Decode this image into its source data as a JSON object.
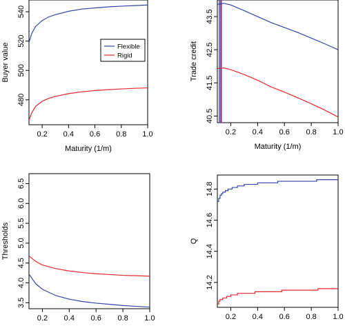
{
  "chart_data": [
    {
      "type": "line",
      "xlabel": "Maturity (1/m)",
      "ylabel": "Buyer value",
      "xlim": [
        0.1,
        1.0
      ],
      "ylim": [
        463,
        548
      ],
      "xticks": [
        0.2,
        0.4,
        0.6,
        0.8,
        1.0
      ],
      "xtick_labels": [
        "0.2",
        "0.4",
        "0.6",
        "0.8",
        "1.0"
      ],
      "yticks": [
        480,
        500,
        520,
        540
      ],
      "ytick_labels": [
        "480",
        "500",
        "520",
        "540"
      ],
      "legend": {
        "placement": "center-right",
        "entries": [
          "Flexible",
          "Rigid"
        ]
      },
      "series": [
        {
          "name": "Flexible",
          "color": "#3344aa",
          "x": [
            0.1,
            0.12,
            0.15,
            0.2,
            0.25,
            0.3,
            0.4,
            0.5,
            0.6,
            0.7,
            0.8,
            0.9,
            1.0
          ],
          "values": [
            519,
            525,
            530,
            534,
            536.5,
            538,
            540.3,
            541.8,
            542.6,
            543.3,
            543.8,
            544.2,
            544.6
          ]
        },
        {
          "name": "Rigid",
          "color": "#e8262b",
          "x": [
            0.1,
            0.12,
            0.15,
            0.2,
            0.25,
            0.3,
            0.4,
            0.5,
            0.6,
            0.7,
            0.8,
            0.9,
            1.0
          ],
          "values": [
            466,
            471,
            475.5,
            479,
            481,
            482.3,
            484.2,
            485.4,
            486.3,
            486.9,
            487.4,
            487.8,
            488.1
          ]
        }
      ]
    },
    {
      "type": "line",
      "xlabel": "Maturity (1/m)",
      "ylabel": "Trade credit",
      "xlim": [
        0.1,
        1.0
      ],
      "ylim": [
        40.3,
        44.0
      ],
      "xticks": [
        0.2,
        0.4,
        0.6,
        0.8,
        1.0
      ],
      "xtick_labels": [
        "0.2",
        "0.4",
        "0.6",
        "0.8",
        "1.0"
      ],
      "yticks": [
        40.5,
        41.5,
        42.5,
        43.5
      ],
      "ytick_labels": [
        "40.5",
        "41.5",
        "42.5",
        "43.5"
      ],
      "vlines": [
        {
          "x": 0.115,
          "color": "#3344aa"
        },
        {
          "x": 0.13,
          "color": "#3344aa"
        },
        {
          "x": 0.125,
          "color": "#e8262b"
        }
      ],
      "series": [
        {
          "name": "Flexible",
          "color": "#3344aa",
          "x": [
            0.1,
            0.15,
            0.2,
            0.3,
            0.4,
            0.5,
            0.6,
            0.7,
            0.8,
            0.9,
            1.0
          ],
          "values": [
            43.87,
            43.9,
            43.85,
            43.68,
            43.5,
            43.32,
            43.17,
            43.02,
            42.85,
            42.68,
            42.5
          ]
        },
        {
          "name": "Rigid",
          "color": "#e8262b",
          "x": [
            0.1,
            0.15,
            0.2,
            0.3,
            0.4,
            0.5,
            0.6,
            0.7,
            0.8,
            0.9,
            1.0
          ],
          "values": [
            41.93,
            41.95,
            41.9,
            41.75,
            41.58,
            41.38,
            41.22,
            41.05,
            40.87,
            40.68,
            40.47
          ]
        }
      ]
    },
    {
      "type": "line",
      "xlabel": "Maturity (1/m)",
      "ylabel": "Thresholds",
      "xlim": [
        0.1,
        1.0
      ],
      "ylim": [
        3.35,
        6.75
      ],
      "xticks": [
        0.2,
        0.4,
        0.6,
        0.8,
        1.0
      ],
      "xtick_labels": [
        "0.2",
        "0.4",
        "0.6",
        "0.8",
        "1.0"
      ],
      "yticks": [
        3.5,
        4.0,
        4.5,
        5.0,
        5.5,
        6.0,
        6.5
      ],
      "ytick_labels": [
        "3.5",
        "4.0",
        "4.5",
        "5.0",
        "5.5",
        "6.0",
        "6.5"
      ],
      "series": [
        {
          "name": "Flexible",
          "color": "#3344aa",
          "x": [
            0.1,
            0.15,
            0.2,
            0.3,
            0.4,
            0.5,
            0.6,
            0.7,
            0.8,
            0.9,
            1.0
          ],
          "values": [
            4.22,
            3.98,
            3.84,
            3.68,
            3.59,
            3.53,
            3.49,
            3.46,
            3.43,
            3.41,
            3.39
          ]
        },
        {
          "name": "Rigid",
          "color": "#e8262b",
          "x": [
            0.1,
            0.15,
            0.2,
            0.3,
            0.4,
            0.5,
            0.6,
            0.7,
            0.8,
            0.9,
            1.0
          ],
          "values": [
            4.68,
            4.54,
            4.45,
            4.36,
            4.3,
            4.26,
            4.23,
            4.21,
            4.19,
            4.18,
            4.17
          ]
        }
      ]
    },
    {
      "type": "line",
      "xlabel": "Maturity (1/m)",
      "ylabel": "Q",
      "xlim": [
        0.1,
        1.0
      ],
      "ylim": [
        14.04,
        14.89
      ],
      "xticks": [
        0.2,
        0.4,
        0.6,
        0.8,
        1.0
      ],
      "xtick_labels": [
        "0.2",
        "0.4",
        "0.6",
        "0.8",
        "1.0"
      ],
      "yticks": [
        14.2,
        14.4,
        14.6,
        14.8
      ],
      "ytick_labels": [
        "14.2",
        "14.4",
        "14.6",
        "14.8"
      ],
      "step": true,
      "series": [
        {
          "name": "Flexible",
          "color": "#3344aa",
          "x": [
            0.1,
            0.11,
            0.12,
            0.13,
            0.14,
            0.16,
            0.18,
            0.21,
            0.25,
            0.3,
            0.4,
            0.55,
            0.84,
            1.0
          ],
          "values": [
            14.72,
            14.74,
            14.76,
            14.77,
            14.78,
            14.79,
            14.8,
            14.81,
            14.82,
            14.83,
            14.84,
            14.85,
            14.86,
            14.86
          ]
        },
        {
          "name": "Rigid",
          "color": "#e8262b",
          "x": [
            0.1,
            0.11,
            0.12,
            0.14,
            0.17,
            0.2,
            0.25,
            0.38,
            0.58,
            0.85,
            1.0
          ],
          "values": [
            14.06,
            14.08,
            14.09,
            14.1,
            14.11,
            14.12,
            14.13,
            14.14,
            14.15,
            14.16,
            14.16
          ]
        }
      ]
    }
  ]
}
